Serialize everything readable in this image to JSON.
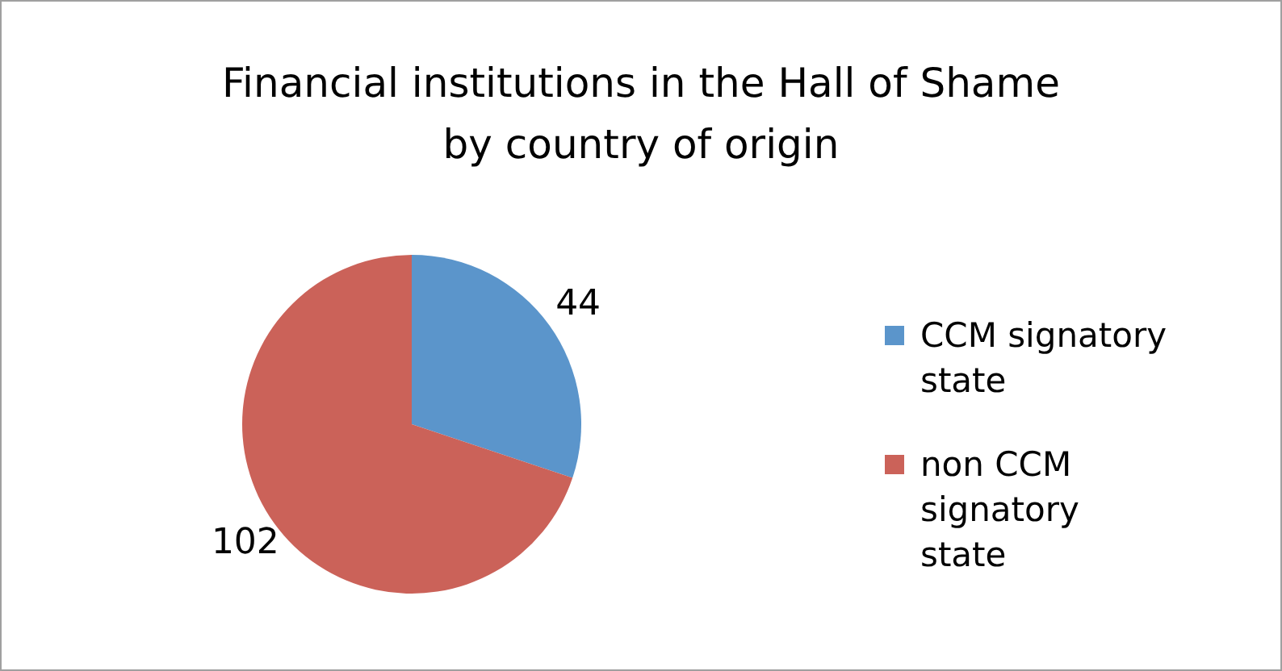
{
  "chart_data": {
    "type": "pie",
    "title": "Financial institutions in the Hall of Shame by country of origin",
    "categories": [
      "CCM signatory state",
      "non CCM signatory state"
    ],
    "values": [
      44,
      102
    ],
    "colors": [
      "#5b95cb",
      "#cb6259"
    ],
    "data_labels": true,
    "legend": "right"
  }
}
